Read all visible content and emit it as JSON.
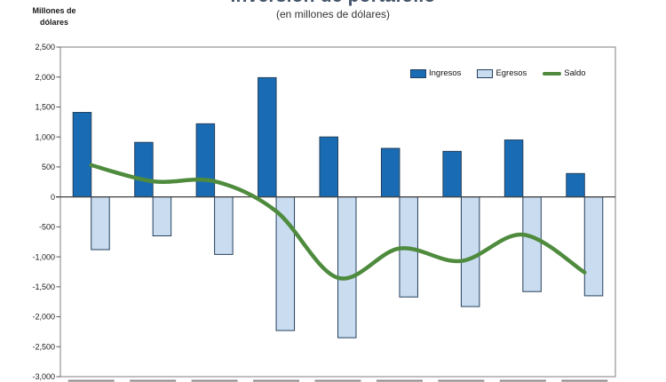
{
  "header": {
    "title": "Inversión de portafolio",
    "subtitle": "(en millones de dólares)",
    "axis_unit_line1": "Millones de",
    "axis_unit_line2": "dólares"
  },
  "legend": {
    "position": "top-right-inside",
    "items": [
      {
        "label": "Ingresos",
        "kind": "bar",
        "color": "#196CB4"
      },
      {
        "label": "Egresos",
        "kind": "bar",
        "color": "#C9DCF0"
      },
      {
        "label": "Saldo",
        "kind": "line",
        "color": "#4E8B3D"
      }
    ]
  },
  "colors": {
    "ingresos": "#196CB4",
    "egresos": "#C9DCF0",
    "bar_border": "#24405C",
    "saldo": "#4E8B3D",
    "frame": "#7F7F7F",
    "zero_line": "#404040",
    "tick": "#595959",
    "text": "#1A1A1A",
    "title": "#44546A",
    "cut_label_row": "#8F8F8F"
  },
  "chart_data": {
    "type": "bar",
    "title": "Inversión de portafolio",
    "subtitle": "(en millones de dólares)",
    "ylabel": "Millones de dólares",
    "categories": [
      "",
      "",
      "",
      "",
      "",
      "",
      "",
      "",
      ""
    ],
    "x_tick_labels_visible": false,
    "series": [
      {
        "name": "Ingresos",
        "kind": "bar",
        "values": [
          1410,
          910,
          1220,
          1990,
          1000,
          810,
          760,
          950,
          390
        ]
      },
      {
        "name": "Egresos",
        "kind": "bar",
        "values": [
          -880,
          -650,
          -960,
          -2230,
          -2350,
          -1670,
          -1830,
          -1580,
          -1650
        ]
      },
      {
        "name": "Saldo",
        "kind": "line",
        "values": [
          530,
          260,
          260,
          -240,
          -1350,
          -860,
          -1070,
          -630,
          -1260
        ]
      }
    ],
    "ylim": [
      -3000,
      2500
    ],
    "y_tick_step": 500,
    "y_ticks": [
      {
        "label": "2,500",
        "value": 2500
      },
      {
        "label": "2,000",
        "value": 2000
      },
      {
        "label": "1,500",
        "value": 1500
      },
      {
        "label": "1,000",
        "value": 1000
      },
      {
        "label": "500",
        "value": 500
      },
      {
        "label": "0",
        "value": 0
      },
      {
        "label": "-500",
        "value": -500
      },
      {
        "label": "-1,000",
        "value": -1000
      },
      {
        "label": "-1,500",
        "value": -1500
      },
      {
        "label": "-2,000",
        "value": -2000
      },
      {
        "label": "-2,500",
        "value": -2500
      },
      {
        "label": "-3,000",
        "value": -3000
      }
    ],
    "grid": false,
    "legend_position": "top-right-inside"
  }
}
